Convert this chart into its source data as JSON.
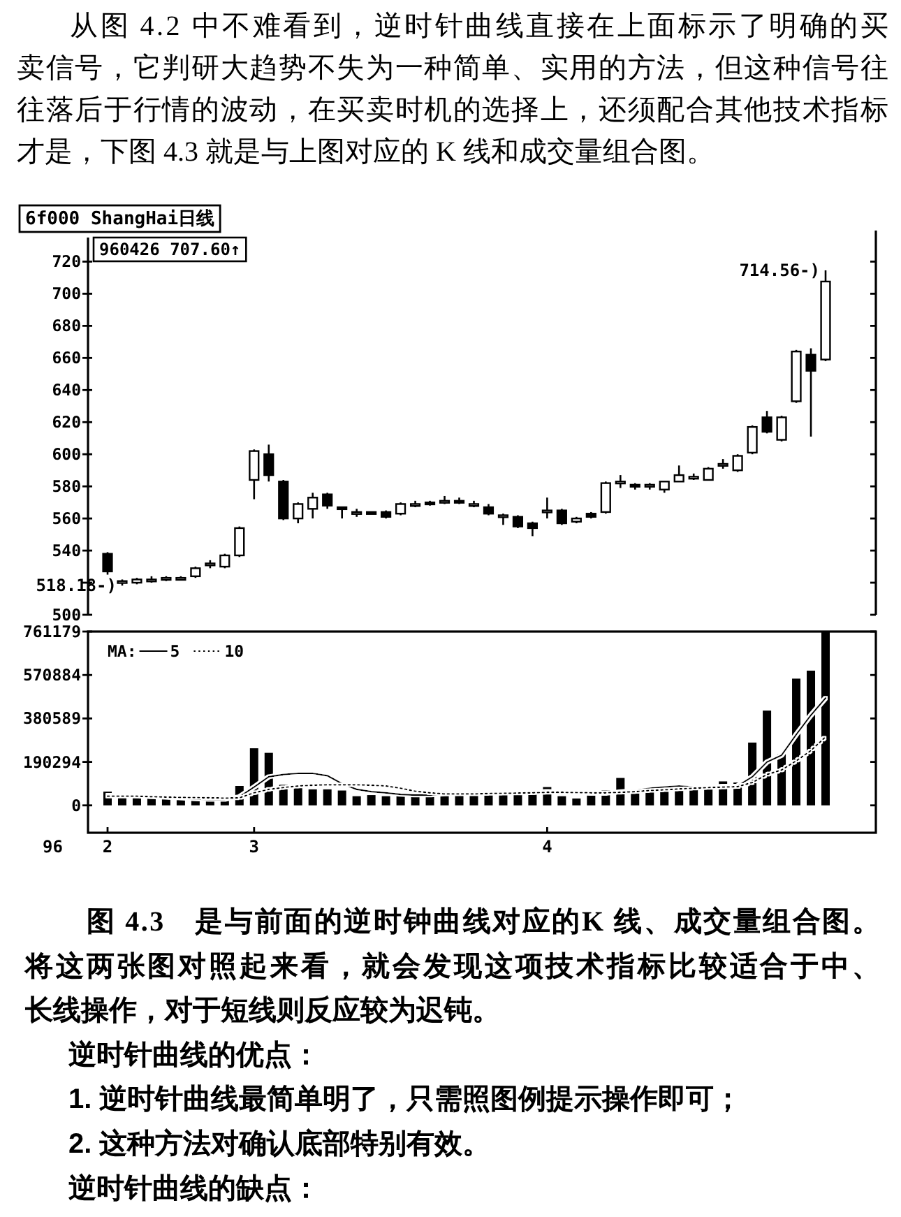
{
  "chart_data": [
    {
      "type": "other",
      "annotations": [
        "从图 4.2 中不难看到，逆时针曲线直接在上面标示了明确的买",
        "卖信号，它判研大趋势不失为一种简单、实用的方法，但这种信号往",
        "往落后于行情的波动，在买卖时机的选择上，还须配合其他技术指标",
        "才是，下图 4.3 就是与上图对应的 K 线和成交量组合图。"
      ]
    },
    {
      "type": "candlestick",
      "title": "6f000 ShangHai日线",
      "ohlc": [
        [
          538,
          539,
          525,
          527
        ],
        [
          520,
          522,
          518.18,
          521
        ],
        [
          520,
          523,
          519,
          522
        ],
        [
          522,
          524,
          520,
          522
        ],
        [
          522,
          524,
          521,
          523
        ],
        [
          523,
          524,
          522,
          523
        ],
        [
          524,
          530,
          523,
          529
        ],
        [
          531,
          534,
          529,
          532
        ],
        [
          530,
          538,
          529,
          537
        ],
        [
          537,
          555,
          536,
          554
        ],
        [
          584,
          603,
          572,
          602
        ],
        [
          600,
          606,
          583,
          587
        ],
        [
          583,
          584,
          559,
          560
        ],
        [
          560,
          570,
          557,
          569
        ],
        [
          566,
          576,
          560,
          573
        ],
        [
          575,
          576,
          566,
          568
        ],
        [
          567,
          567,
          560,
          566
        ],
        [
          563,
          566,
          561,
          564
        ],
        [
          564,
          564,
          563,
          563
        ],
        [
          564,
          565,
          560,
          561
        ],
        [
          563,
          570,
          562,
          569
        ],
        [
          569,
          571,
          567,
          569
        ],
        [
          570,
          571,
          568,
          569
        ],
        [
          571,
          574,
          569,
          571
        ],
        [
          571,
          573,
          569,
          570
        ],
        [
          569,
          571,
          567,
          569
        ],
        [
          567,
          569,
          562,
          563
        ],
        [
          562,
          563,
          556,
          562
        ],
        [
          561,
          562,
          554,
          555
        ],
        [
          557,
          558,
          549,
          554
        ],
        [
          564,
          573,
          560,
          565
        ],
        [
          565,
          566,
          556,
          557
        ],
        [
          558,
          561,
          557,
          560
        ],
        [
          563,
          564,
          560,
          561
        ],
        [
          564,
          583,
          563,
          582
        ],
        [
          582,
          587,
          579,
          583
        ],
        [
          581,
          582,
          578,
          580
        ],
        [
          580,
          582,
          578,
          581
        ],
        [
          578,
          583,
          576,
          583
        ],
        [
          583,
          593,
          583,
          587
        ],
        [
          586,
          588,
          584,
          586
        ],
        [
          584,
          592,
          584,
          591
        ],
        [
          594,
          597,
          591,
          594
        ],
        [
          590,
          600,
          589,
          599
        ],
        [
          601,
          618,
          600,
          617
        ],
        [
          623,
          627,
          613,
          614
        ],
        [
          609,
          624,
          608,
          623
        ],
        [
          633,
          665,
          632,
          664
        ],
        [
          662,
          666,
          611,
          652
        ],
        [
          659,
          714.56,
          658,
          707.6
        ]
      ],
      "ylim": [
        500,
        735
      ],
      "yticks": [
        500,
        {
          "value": 520,
          "label": null
        },
        540,
        560,
        580,
        600,
        620,
        640,
        660,
        680,
        700,
        720
      ],
      "annotations": [
        "960426 707.60↑",
        "714.56-)",
        "518.18-)"
      ]
    },
    {
      "type": "bar",
      "categories": [
        "2",
        null,
        null,
        null,
        null,
        null,
        null,
        null,
        null,
        null,
        "3",
        null,
        null,
        null,
        null,
        null,
        null,
        null,
        null,
        null,
        null,
        null,
        null,
        null,
        null,
        null,
        null,
        null,
        null,
        null,
        "4",
        null,
        null,
        null,
        null,
        null,
        null,
        null,
        null,
        null,
        null,
        null,
        null,
        null,
        null,
        null,
        null,
        null,
        null,
        null
      ],
      "xlabel": "96",
      "series": [
        {
          "color": "#000000",
          "values": [
            60000,
            45000,
            40000,
            35000,
            30000,
            25000,
            25000,
            25000,
            30000,
            85000,
            250000,
            230000,
            90000,
            75000,
            70000,
            70000,
            65000,
            40000,
            45000,
            40000,
            45000,
            45000,
            50000,
            60000,
            55000,
            55000,
            55000,
            55000,
            60000,
            60000,
            80000,
            40000,
            30000,
            45000,
            65000,
            120000,
            65000,
            75000,
            80000,
            90000,
            80000,
            75000,
            105000,
            100000,
            275000,
            415000,
            225000,
            555000,
            590000,
            760000
          ]
        },
        {
          "type": "line",
          "name": "5",
          "color": "#000000",
          "line_style": "solid",
          "values": [
            45000,
            45000,
            42000,
            38000,
            35000,
            32000,
            28000,
            26000,
            26000,
            38000,
            80000,
            125000,
            135000,
            140000,
            140000,
            130000,
            95000,
            70000,
            60000,
            55000,
            48000,
            45000,
            45000,
            50000,
            52000,
            55000,
            55000,
            55000,
            58000,
            58000,
            62000,
            58000,
            55000,
            52000,
            52000,
            60000,
            65000,
            75000,
            80000,
            85000,
            80000,
            80000,
            85000,
            85000,
            125000,
            190000,
            220000,
            310000,
            395000,
            470000
          ]
        },
        {
          "type": "line",
          "name": "10",
          "color": "#000000",
          "line_style": "dotted",
          "values": [
            40000,
            40000,
            40000,
            38000,
            36000,
            35000,
            34000,
            33000,
            32000,
            33000,
            55000,
            70000,
            78000,
            85000,
            88000,
            90000,
            90000,
            90000,
            88000,
            85000,
            75000,
            62000,
            55000,
            50000,
            50000,
            50000,
            52000,
            53000,
            54000,
            55000,
            57000,
            57000,
            56000,
            55000,
            55000,
            57000,
            60000,
            65000,
            68000,
            72000,
            75000,
            78000,
            80000,
            82000,
            100000,
            135000,
            155000,
            195000,
            240000,
            300000
          ]
        }
      ],
      "legend": "top left",
      "legend_title": "MA:",
      "ylim": [
        -120000,
        761179
      ],
      "yticks": [
        0,
        190294,
        380589,
        570884,
        761179
      ]
    },
    {
      "type": "other",
      "annotations": [
        "图 4.3　是与前面的逆时钟曲线对应的K 线、成交量组合图。",
        "将这两张图对照起来看，就会发现这项技术指标比较适合于中、",
        "长线操作，对于短线则反应较为迟钝。",
        "逆时针曲线的优点：",
        "1. 逆时针曲线最简单明了，只需照图例提示操作即可；",
        "2. 这种方法对确认底部特别有效。",
        "逆时针曲线的缺点："
      ]
    }
  ]
}
